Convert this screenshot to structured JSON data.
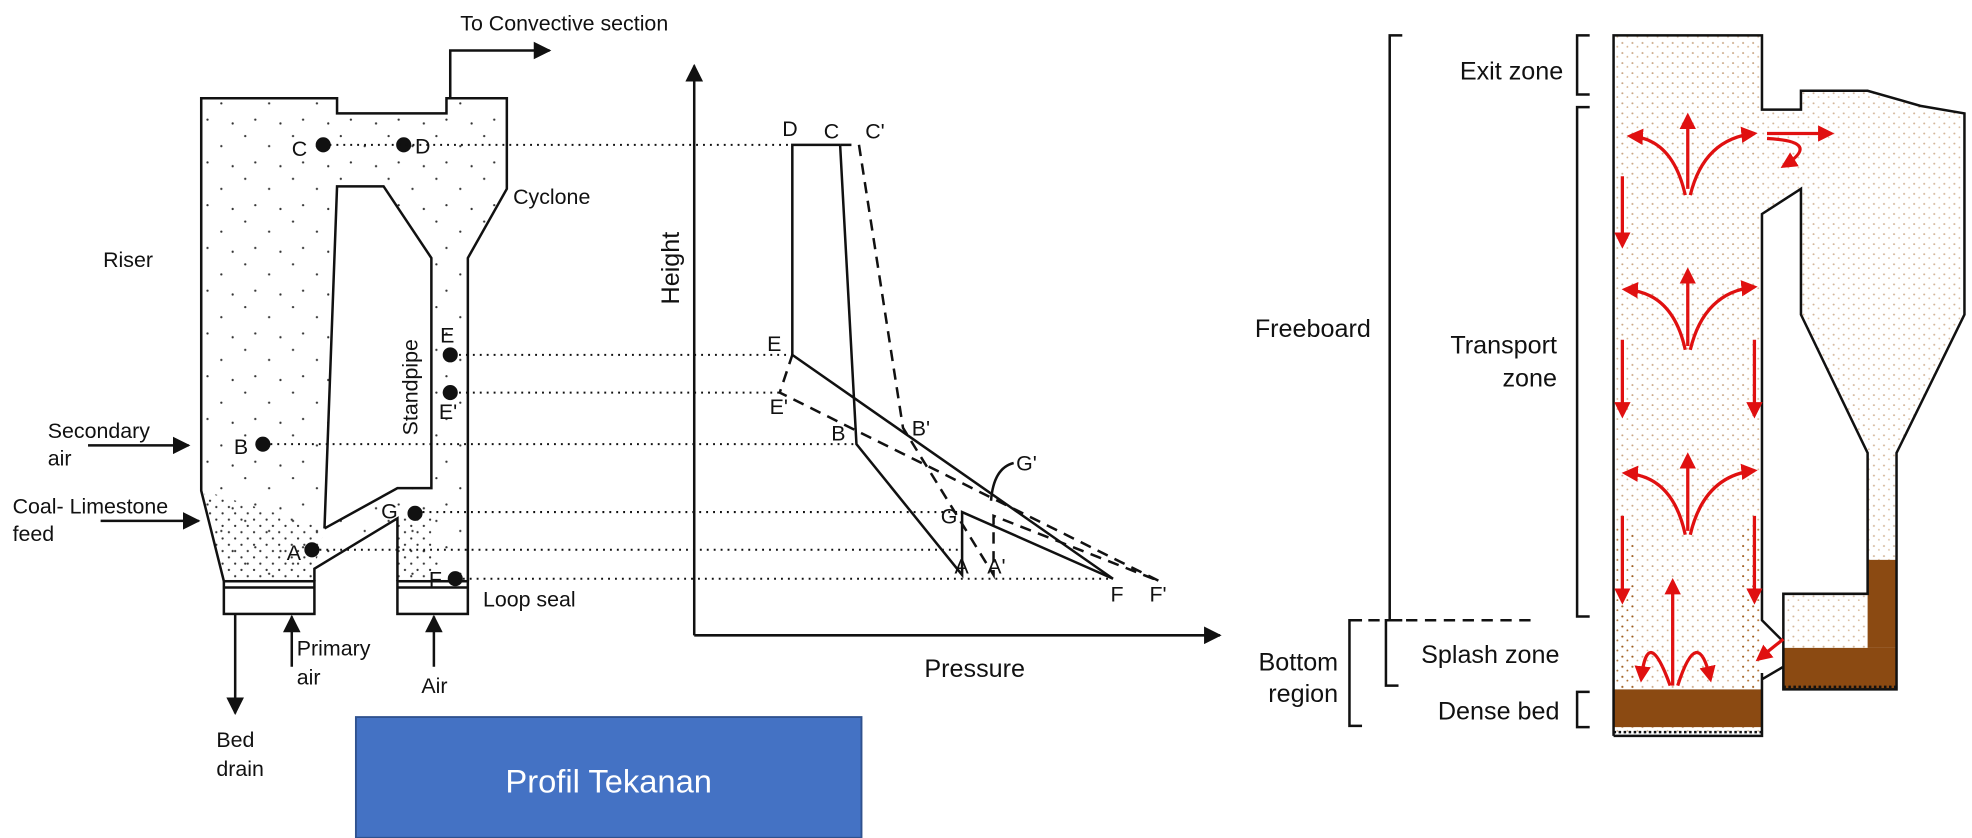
{
  "left_diagram": {
    "outlet": "To Convective section",
    "riser": "Riser",
    "cyclone": "Cyclone",
    "standpipe": "Standpipe",
    "secondary_air": [
      "Secondary",
      "air"
    ],
    "feed": [
      "Coal- Limestone",
      "feed"
    ],
    "primary_air": [
      "Primary",
      "air"
    ],
    "air": "Air",
    "bed_drain": [
      "Bed",
      "drain"
    ],
    "loop_seal": "Loop seal",
    "points": [
      "C",
      "D",
      "B",
      "A",
      "G",
      "E",
      "E'",
      "F"
    ]
  },
  "pressure_profile": {
    "y_axis": "Height",
    "x_axis": "Pressure",
    "points": [
      "D",
      "C",
      "C'",
      "E",
      "E'",
      "B",
      "B'",
      "G'",
      "G",
      "A",
      "A'",
      "F",
      "F'"
    ]
  },
  "zones": {
    "exit_zone": "Exit zone",
    "freeboard": "Freeboard",
    "transport_zone": [
      "Transport",
      "zone"
    ],
    "bottom_region": [
      "Bottom",
      "region"
    ],
    "splash_zone": "Splash zone",
    "dense_bed": "Dense bed"
  },
  "button": "Profil Tekanan"
}
